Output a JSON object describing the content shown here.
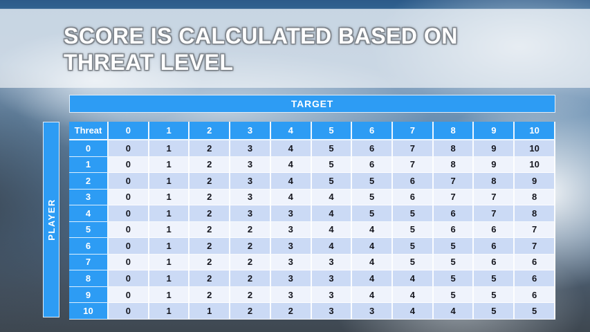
{
  "slide": {
    "title": "SCORE IS CALCULATED BASED ON\nTHREAT LEVEL"
  },
  "table": {
    "target_header": "TARGET",
    "player_header": "PLAYER",
    "corner_header": "Threat",
    "columns": [
      "0",
      "1",
      "2",
      "3",
      "4",
      "5",
      "6",
      "7",
      "8",
      "9",
      "10"
    ],
    "rows": [
      {
        "threat": "0",
        "values": [
          "0",
          "1",
          "2",
          "3",
          "4",
          "5",
          "6",
          "7",
          "8",
          "9",
          "10"
        ]
      },
      {
        "threat": "1",
        "values": [
          "0",
          "1",
          "2",
          "3",
          "4",
          "5",
          "6",
          "7",
          "8",
          "9",
          "10"
        ]
      },
      {
        "threat": "2",
        "values": [
          "0",
          "1",
          "2",
          "3",
          "4",
          "5",
          "5",
          "6",
          "7",
          "8",
          "9"
        ]
      },
      {
        "threat": "3",
        "values": [
          "0",
          "1",
          "2",
          "3",
          "4",
          "4",
          "5",
          "6",
          "7",
          "7",
          "8"
        ]
      },
      {
        "threat": "4",
        "values": [
          "0",
          "1",
          "2",
          "3",
          "3",
          "4",
          "5",
          "5",
          "6",
          "7",
          "8"
        ]
      },
      {
        "threat": "5",
        "values": [
          "0",
          "1",
          "2",
          "2",
          "3",
          "4",
          "4",
          "5",
          "6",
          "6",
          "7"
        ]
      },
      {
        "threat": "6",
        "values": [
          "0",
          "1",
          "2",
          "2",
          "3",
          "4",
          "4",
          "5",
          "5",
          "6",
          "7"
        ]
      },
      {
        "threat": "7",
        "values": [
          "0",
          "1",
          "2",
          "2",
          "3",
          "3",
          "4",
          "5",
          "5",
          "6",
          "6"
        ]
      },
      {
        "threat": "8",
        "values": [
          "0",
          "1",
          "2",
          "2",
          "3",
          "3",
          "4",
          "4",
          "5",
          "5",
          "6"
        ]
      },
      {
        "threat": "9",
        "values": [
          "0",
          "1",
          "2",
          "2",
          "3",
          "3",
          "4",
          "4",
          "5",
          "5",
          "6"
        ]
      },
      {
        "threat": "10",
        "values": [
          "0",
          "1",
          "1",
          "2",
          "2",
          "3",
          "3",
          "4",
          "4",
          "5",
          "5"
        ]
      }
    ]
  },
  "colors": {
    "accent_blue": "#2D9CF4",
    "row_stripe_dark": "#CBDAF5",
    "row_stripe_light": "#EFF3FC",
    "body_text": "#15161E",
    "title_text": "#FFFFFF",
    "banner_overlay": "rgba(255,255,255,0.60)"
  }
}
